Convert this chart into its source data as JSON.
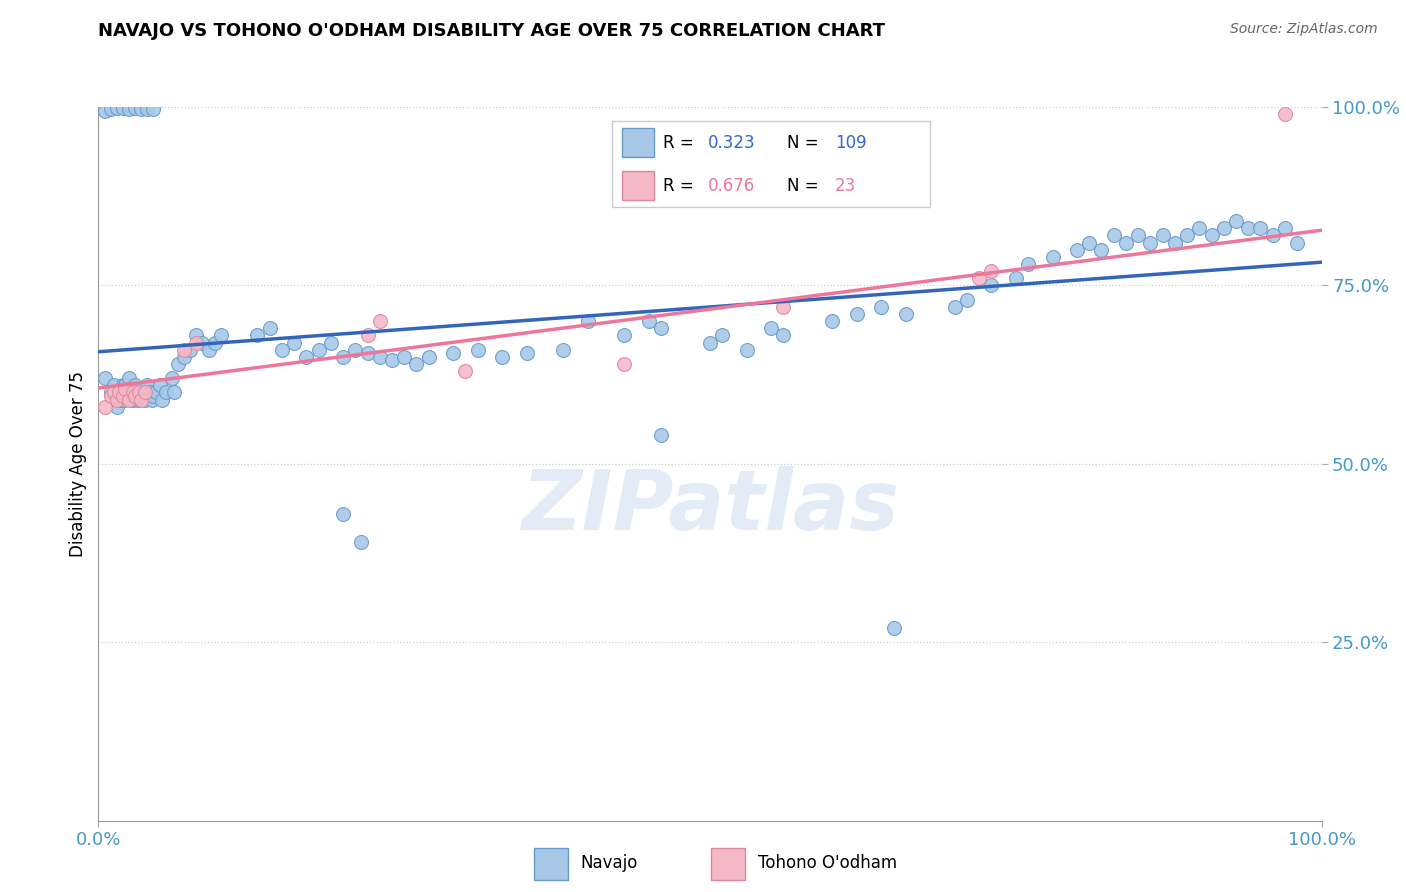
{
  "title": "NAVAJO VS TOHONO O'ODHAM DISABILITY AGE OVER 75 CORRELATION CHART",
  "source": "Source: ZipAtlas.com",
  "ylabel": "Disability Age Over 75",
  "xlim": [
    0,
    1.0
  ],
  "ylim": [
    0,
    1.0
  ],
  "xtick_labels": [
    "0.0%",
    "100.0%"
  ],
  "ytick_labels": [
    "25.0%",
    "50.0%",
    "75.0%",
    "100.0%"
  ],
  "ytick_positions": [
    0.25,
    0.5,
    0.75,
    1.0
  ],
  "grid_color": "#cccccc",
  "background_color": "#ffffff",
  "watermark": "ZIPatlas",
  "navajo_color": "#a8c8e8",
  "tohono_color": "#f4b8c8",
  "navajo_edge_color": "#6699cc",
  "tohono_edge_color": "#dd8899",
  "navajo_line_color": "#3366bb",
  "tohono_line_color": "#ee7799",
  "legend_blue_color": "#3366cc",
  "legend_pink_color": "#ee7799",
  "tick_color": "#4499cc",
  "R_navajo": "0.323",
  "N_navajo": "109",
  "R_tohono": "0.676",
  "N_tohono": "23",
  "navajo_x": [
    0.005,
    0.01,
    0.013,
    0.015,
    0.017,
    0.018,
    0.02,
    0.021,
    0.022,
    0.023,
    0.025,
    0.027,
    0.028,
    0.03,
    0.031,
    0.032,
    0.033,
    0.035,
    0.037,
    0.038,
    0.04,
    0.042,
    0.044,
    0.045,
    0.047,
    0.05,
    0.052,
    0.055,
    0.06,
    0.062,
    0.065,
    0.07,
    0.075,
    0.08,
    0.085,
    0.09,
    0.095,
    0.1,
    0.13,
    0.14,
    0.15,
    0.16,
    0.17,
    0.18,
    0.19,
    0.2,
    0.21,
    0.22,
    0.23,
    0.24,
    0.25,
    0.26,
    0.27,
    0.2,
    0.215,
    0.29,
    0.31,
    0.33,
    0.35,
    0.38,
    0.4,
    0.43,
    0.45,
    0.46,
    0.5,
    0.51,
    0.53,
    0.55,
    0.56,
    0.6,
    0.62,
    0.64,
    0.66,
    0.7,
    0.71,
    0.73,
    0.75,
    0.76,
    0.78,
    0.8,
    0.81,
    0.82,
    0.83,
    0.84,
    0.85,
    0.86,
    0.87,
    0.88,
    0.89,
    0.9,
    0.91,
    0.92,
    0.93,
    0.94,
    0.95,
    0.96,
    0.97,
    0.98,
    0.005,
    0.01,
    0.015,
    0.02,
    0.025,
    0.03,
    0.035,
    0.04,
    0.045,
    0.46,
    0.65
  ],
  "navajo_y": [
    0.62,
    0.6,
    0.61,
    0.58,
    0.6,
    0.59,
    0.61,
    0.59,
    0.61,
    0.6,
    0.62,
    0.6,
    0.59,
    0.61,
    0.6,
    0.59,
    0.605,
    0.595,
    0.6,
    0.59,
    0.61,
    0.6,
    0.59,
    0.595,
    0.6,
    0.61,
    0.59,
    0.6,
    0.62,
    0.6,
    0.64,
    0.65,
    0.66,
    0.68,
    0.67,
    0.66,
    0.67,
    0.68,
    0.68,
    0.69,
    0.66,
    0.67,
    0.65,
    0.66,
    0.67,
    0.65,
    0.66,
    0.655,
    0.65,
    0.645,
    0.65,
    0.64,
    0.65,
    0.43,
    0.39,
    0.655,
    0.66,
    0.65,
    0.655,
    0.66,
    0.7,
    0.68,
    0.7,
    0.69,
    0.67,
    0.68,
    0.66,
    0.69,
    0.68,
    0.7,
    0.71,
    0.72,
    0.71,
    0.72,
    0.73,
    0.75,
    0.76,
    0.78,
    0.79,
    0.8,
    0.81,
    0.8,
    0.82,
    0.81,
    0.82,
    0.81,
    0.82,
    0.81,
    0.82,
    0.83,
    0.82,
    0.83,
    0.84,
    0.83,
    0.83,
    0.82,
    0.83,
    0.81,
    0.995,
    0.997,
    0.998,
    0.998,
    0.997,
    0.998,
    0.997,
    0.997,
    0.997,
    0.54,
    0.27
  ],
  "tohono_x": [
    0.005,
    0.01,
    0.013,
    0.015,
    0.017,
    0.02,
    0.022,
    0.025,
    0.028,
    0.03,
    0.033,
    0.035,
    0.038,
    0.07,
    0.08,
    0.22,
    0.23,
    0.3,
    0.43,
    0.56,
    0.72,
    0.73,
    0.97
  ],
  "tohono_y": [
    0.58,
    0.595,
    0.6,
    0.59,
    0.6,
    0.595,
    0.605,
    0.59,
    0.6,
    0.595,
    0.6,
    0.59,
    0.6,
    0.66,
    0.67,
    0.68,
    0.7,
    0.63,
    0.64,
    0.72,
    0.76,
    0.77,
    0.99
  ]
}
